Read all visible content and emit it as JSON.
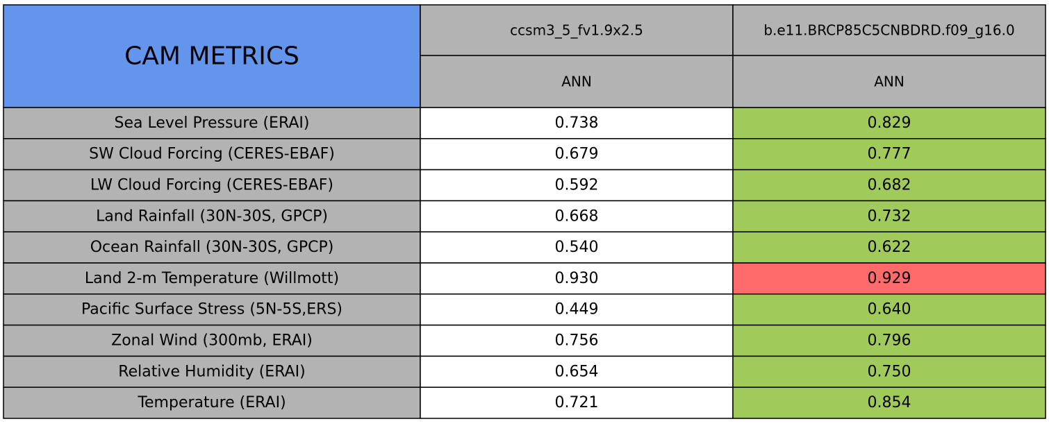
{
  "header": {
    "title": "CAM METRICS",
    "title_color": "#6495ed",
    "header_color": "#b3b3b3"
  },
  "columns": [
    {
      "name": "ccsm3_5_fv1.9x2.5",
      "period": "ANN"
    },
    {
      "name": "b.e11.BRCP85C5CNBDRD.f09_g16.0",
      "period": "ANN"
    }
  ],
  "label_color": "#b3b3b3",
  "rows": [
    {
      "label": "Sea Level Pressure (ERAI)",
      "values": [
        "0.738",
        "0.829"
      ],
      "colors": [
        "#ffffff",
        "#a0cb5a"
      ]
    },
    {
      "label": "SW Cloud Forcing (CERES-EBAF)",
      "values": [
        "0.679",
        "0.777"
      ],
      "colors": [
        "#ffffff",
        "#a0cb5a"
      ]
    },
    {
      "label": "LW Cloud Forcing (CERES-EBAF)",
      "values": [
        "0.592",
        "0.682"
      ],
      "colors": [
        "#ffffff",
        "#a0cb5a"
      ]
    },
    {
      "label": "Land Rainfall (30N-30S, GPCP)",
      "values": [
        "0.668",
        "0.732"
      ],
      "colors": [
        "#ffffff",
        "#a0cb5a"
      ]
    },
    {
      "label": "Ocean Rainfall (30N-30S, GPCP)",
      "values": [
        "0.540",
        "0.622"
      ],
      "colors": [
        "#ffffff",
        "#a0cb5a"
      ]
    },
    {
      "label": "Land 2-m Temperature (Willmott)",
      "values": [
        "0.930",
        "0.929"
      ],
      "colors": [
        "#ffffff",
        "#ff6a6a"
      ]
    },
    {
      "label": "Pacific Surface Stress (5N-5S,ERS)",
      "values": [
        "0.449",
        "0.640"
      ],
      "colors": [
        "#ffffff",
        "#a0cb5a"
      ]
    },
    {
      "label": "Zonal Wind (300mb, ERAI)",
      "values": [
        "0.756",
        "0.796"
      ],
      "colors": [
        "#ffffff",
        "#a0cb5a"
      ]
    },
    {
      "label": "Relative Humidity (ERAI)",
      "values": [
        "0.654",
        "0.750"
      ],
      "colors": [
        "#ffffff",
        "#a0cb5a"
      ]
    },
    {
      "label": "Temperature (ERAI)",
      "values": [
        "0.721",
        "0.854"
      ],
      "colors": [
        "#ffffff",
        "#a0cb5a"
      ]
    }
  ]
}
